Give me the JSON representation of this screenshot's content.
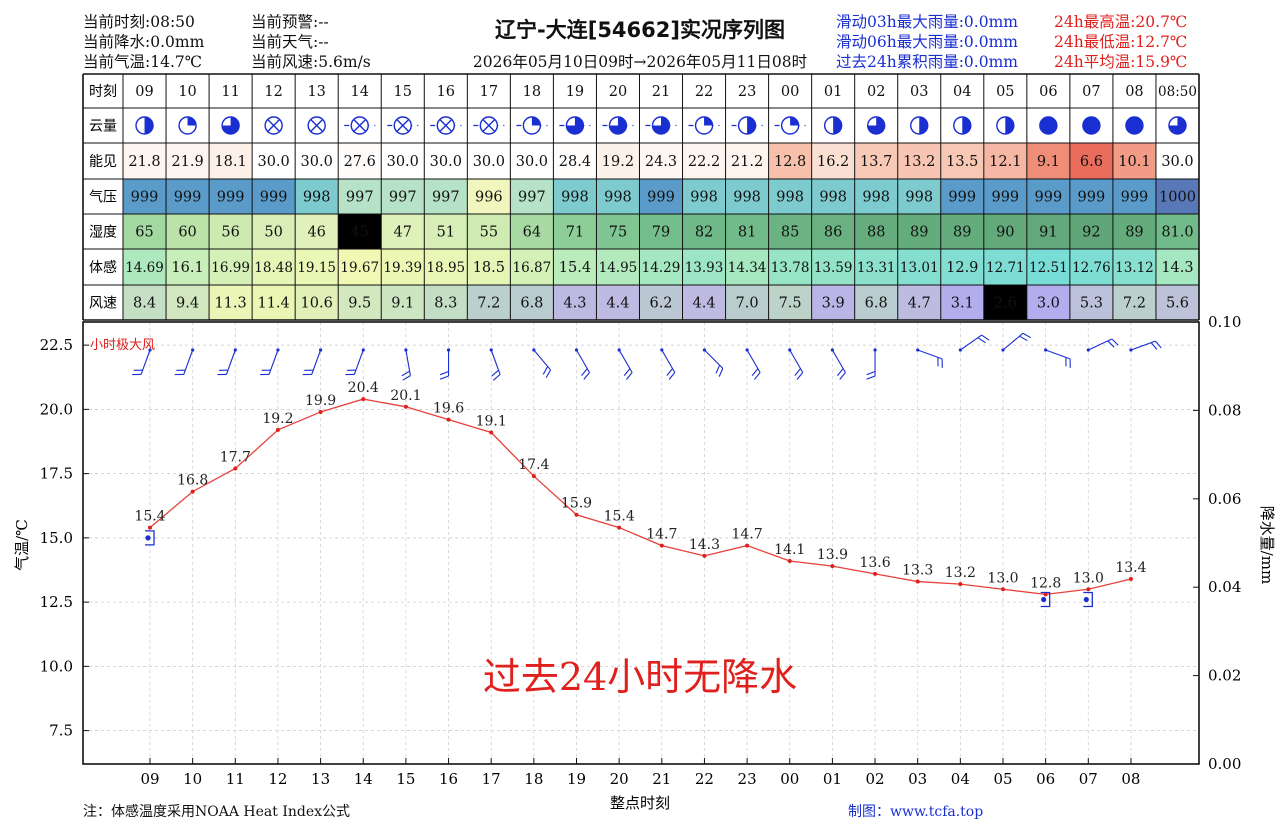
{
  "header": {
    "left": [
      {
        "label": "当前时刻:",
        "value": "08:50"
      },
      {
        "label": "当前降水:",
        "value": "0.0mm"
      },
      {
        "label": "当前气温:",
        "value": "14.7℃"
      }
    ],
    "middle": [
      {
        "label": "当前预警:",
        "value": "--"
      },
      {
        "label": "当前天气:",
        "value": "--"
      },
      {
        "label": "当前风速:",
        "value": "5.6m/s"
      }
    ],
    "title": "辽宁-大连[54662]实况序列图",
    "period": "2026年05月10日09时→2026年05月11日08时",
    "rain_stats": [
      "滑动03h最大雨量:0.0mm",
      "滑动06h最大雨量:0.0mm",
      "过去24h累积雨量:0.0mm"
    ],
    "temp_stats": [
      "24h最高温:20.7℃",
      "24h最低温:12.7℃",
      "24h平均温:15.9℃"
    ]
  },
  "table": {
    "row_labels": [
      "时刻",
      "云量",
      "能见",
      "气压",
      "湿度",
      "体感",
      "风速"
    ],
    "hours": [
      "09",
      "10",
      "11",
      "12",
      "13",
      "14",
      "15",
      "16",
      "17",
      "18",
      "19",
      "20",
      "21",
      "22",
      "23",
      "00",
      "01",
      "02",
      "03",
      "04",
      "05",
      "06",
      "07",
      "08",
      "08:50"
    ],
    "cloud": [
      "half",
      "quarter",
      "three-quarter",
      "obscured",
      "obscured",
      "obscured",
      "obscured",
      "obscured",
      "obscured",
      "quarter",
      "three-quarter",
      "three-quarter",
      "three-quarter",
      "quarter",
      "half",
      "quarter",
      "half",
      "three-quarter",
      "half",
      "half",
      "half",
      "full",
      "full",
      "full",
      "three-quarter"
    ],
    "visibility": [
      "21.8",
      "21.9",
      "18.1",
      "30.0",
      "30.0",
      "27.6",
      "30.0",
      "30.0",
      "30.0",
      "30.0",
      "28.4",
      "19.2",
      "24.3",
      "22.2",
      "21.2",
      "12.8",
      "16.2",
      "13.7",
      "13.2",
      "13.5",
      "12.1",
      "9.1",
      "6.6",
      "10.1",
      "30.0"
    ],
    "pressure": [
      "999",
      "999",
      "999",
      "999",
      "998",
      "997",
      "997",
      "997",
      "996",
      "997",
      "998",
      "998",
      "999",
      "998",
      "998",
      "998",
      "998",
      "998",
      "998",
      "999",
      "999",
      "999",
      "999",
      "999",
      "1000"
    ],
    "humidity": [
      "65",
      "60",
      "56",
      "50",
      "46",
      "45",
      "47",
      "51",
      "55",
      "64",
      "71",
      "75",
      "79",
      "82",
      "81",
      "85",
      "86",
      "88",
      "89",
      "89",
      "90",
      "91",
      "92",
      "89",
      "81.0"
    ],
    "feels_like": [
      "14.69",
      "16.1",
      "16.99",
      "18.48",
      "19.15",
      "19.67",
      "19.39",
      "18.95",
      "18.5",
      "16.87",
      "15.4",
      "14.95",
      "14.29",
      "13.93",
      "14.34",
      "13.78",
      "13.59",
      "13.31",
      "13.01",
      "12.9",
      "12.71",
      "12.51",
      "12.76",
      "13.12",
      "14.3"
    ],
    "wind_speed": [
      "8.4",
      "9.4",
      "11.3",
      "11.4",
      "10.6",
      "9.5",
      "9.1",
      "8.3",
      "7.2",
      "6.8",
      "4.3",
      "4.4",
      "6.2",
      "4.4",
      "7.0",
      "7.5",
      "3.9",
      "6.8",
      "4.7",
      "3.1",
      "2.6",
      "3.0",
      "5.3",
      "7.2",
      "5.6"
    ]
  },
  "chart_labels": {
    "gust_label": "小时极大风",
    "no_precip": "过去24小时无降水",
    "y_left_title": "气温/℃",
    "y_right_title": "降水量/mm",
    "x_title": "整点时刻"
  },
  "footer": {
    "note": "注：体感温度采用NOAA Heat Index公式",
    "credit": "制图：www.tcfa.top"
  },
  "chart_data": {
    "type": "line",
    "x": [
      "09",
      "10",
      "11",
      "12",
      "13",
      "14",
      "15",
      "16",
      "17",
      "18",
      "19",
      "20",
      "21",
      "22",
      "23",
      "00",
      "01",
      "02",
      "03",
      "04",
      "05",
      "06",
      "07",
      "08"
    ],
    "series": [
      {
        "name": "",
        "values": [
          15.4,
          16.8,
          17.7,
          19.2,
          19.9,
          20.4,
          20.1,
          19.6,
          19.1,
          17.4,
          15.9,
          15.4,
          14.7,
          14.3,
          14.7,
          14.1,
          13.9,
          13.6,
          13.3,
          13.2,
          13.0,
          12.8,
          13.0,
          13.4
        ]
      }
    ],
    "extremes": [
      {
        "x": "09",
        "kind": "min",
        "value": 15.0
      },
      {
        "x": "06",
        "kind": "min",
        "value": 12.6
      },
      {
        "x": "07",
        "kind": "min",
        "value": 12.6
      }
    ],
    "wind_directions_deg": [
      200,
      200,
      200,
      200,
      200,
      200,
      170,
      180,
      160,
      140,
      150,
      150,
      150,
      135,
      150,
      150,
      150,
      180,
      110,
      55,
      50,
      110,
      65,
      70
    ],
    "xlabel": "整点时刻",
    "ylabel": "气温/℃",
    "y2label": "降水量/mm",
    "ylim": [
      6.2,
      23.4
    ],
    "y2lim": [
      0.0,
      0.1
    ],
    "yticks": [
      "7.5",
      "10.0",
      "12.5",
      "15.0",
      "17.5",
      "20.0",
      "22.5"
    ],
    "y2ticks": [
      "0.00",
      "0.02",
      "0.04",
      "0.06",
      "0.08",
      "0.10"
    ],
    "grid": true,
    "precipitation": [],
    "colors": {
      "line": "#e8413b",
      "markers": "#1a2fd1"
    }
  }
}
